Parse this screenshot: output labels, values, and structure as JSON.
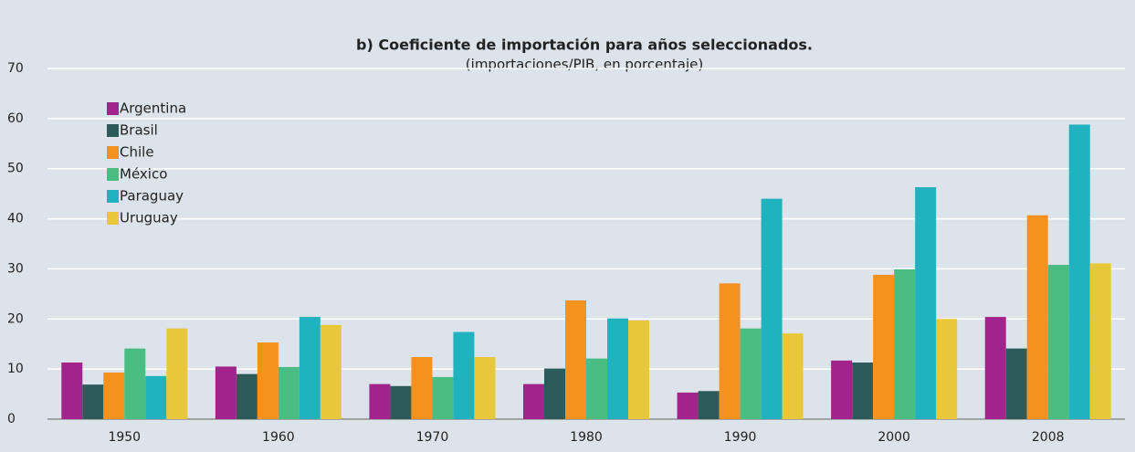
{
  "chart_data": {
    "type": "bar",
    "title": "b) Coeficiente de importación para años seleccionados.",
    "subtitle": "(importaciones/PIB, en porcentaje)",
    "categories": [
      "1950",
      "1960",
      "1970",
      "1980",
      "1990",
      "2000",
      "2008"
    ],
    "series": [
      {
        "name": "Argentina",
        "color": "#a3238c",
        "values": [
          11.3,
          10.5,
          7.0,
          7.0,
          5.3,
          11.7,
          20.4
        ]
      },
      {
        "name": "Brasil",
        "color": "#2c5b5a",
        "values": [
          6.9,
          9.0,
          6.6,
          10.1,
          5.6,
          11.3,
          14.1
        ]
      },
      {
        "name": "Chile",
        "color": "#f5921f",
        "values": [
          9.3,
          15.3,
          12.4,
          23.7,
          27.1,
          28.8,
          40.7
        ]
      },
      {
        "name": "México",
        "color": "#49bd82",
        "values": [
          14.1,
          10.4,
          8.4,
          12.1,
          18.1,
          29.9,
          30.8
        ]
      },
      {
        "name": "Paraguay",
        "color": "#20b2be",
        "values": [
          8.6,
          20.4,
          17.4,
          20.1,
          44.0,
          46.3,
          58.8
        ]
      },
      {
        "name": "Uruguay",
        "color": "#e8c83a",
        "values": [
          18.1,
          18.8,
          12.4,
          19.7,
          17.1,
          20.0,
          31.1
        ]
      }
    ],
    "ylim": [
      0,
      70
    ],
    "yticks": [
      0,
      10,
      20,
      30,
      40,
      50,
      60,
      70
    ],
    "grid": true,
    "legend": "top-left"
  }
}
